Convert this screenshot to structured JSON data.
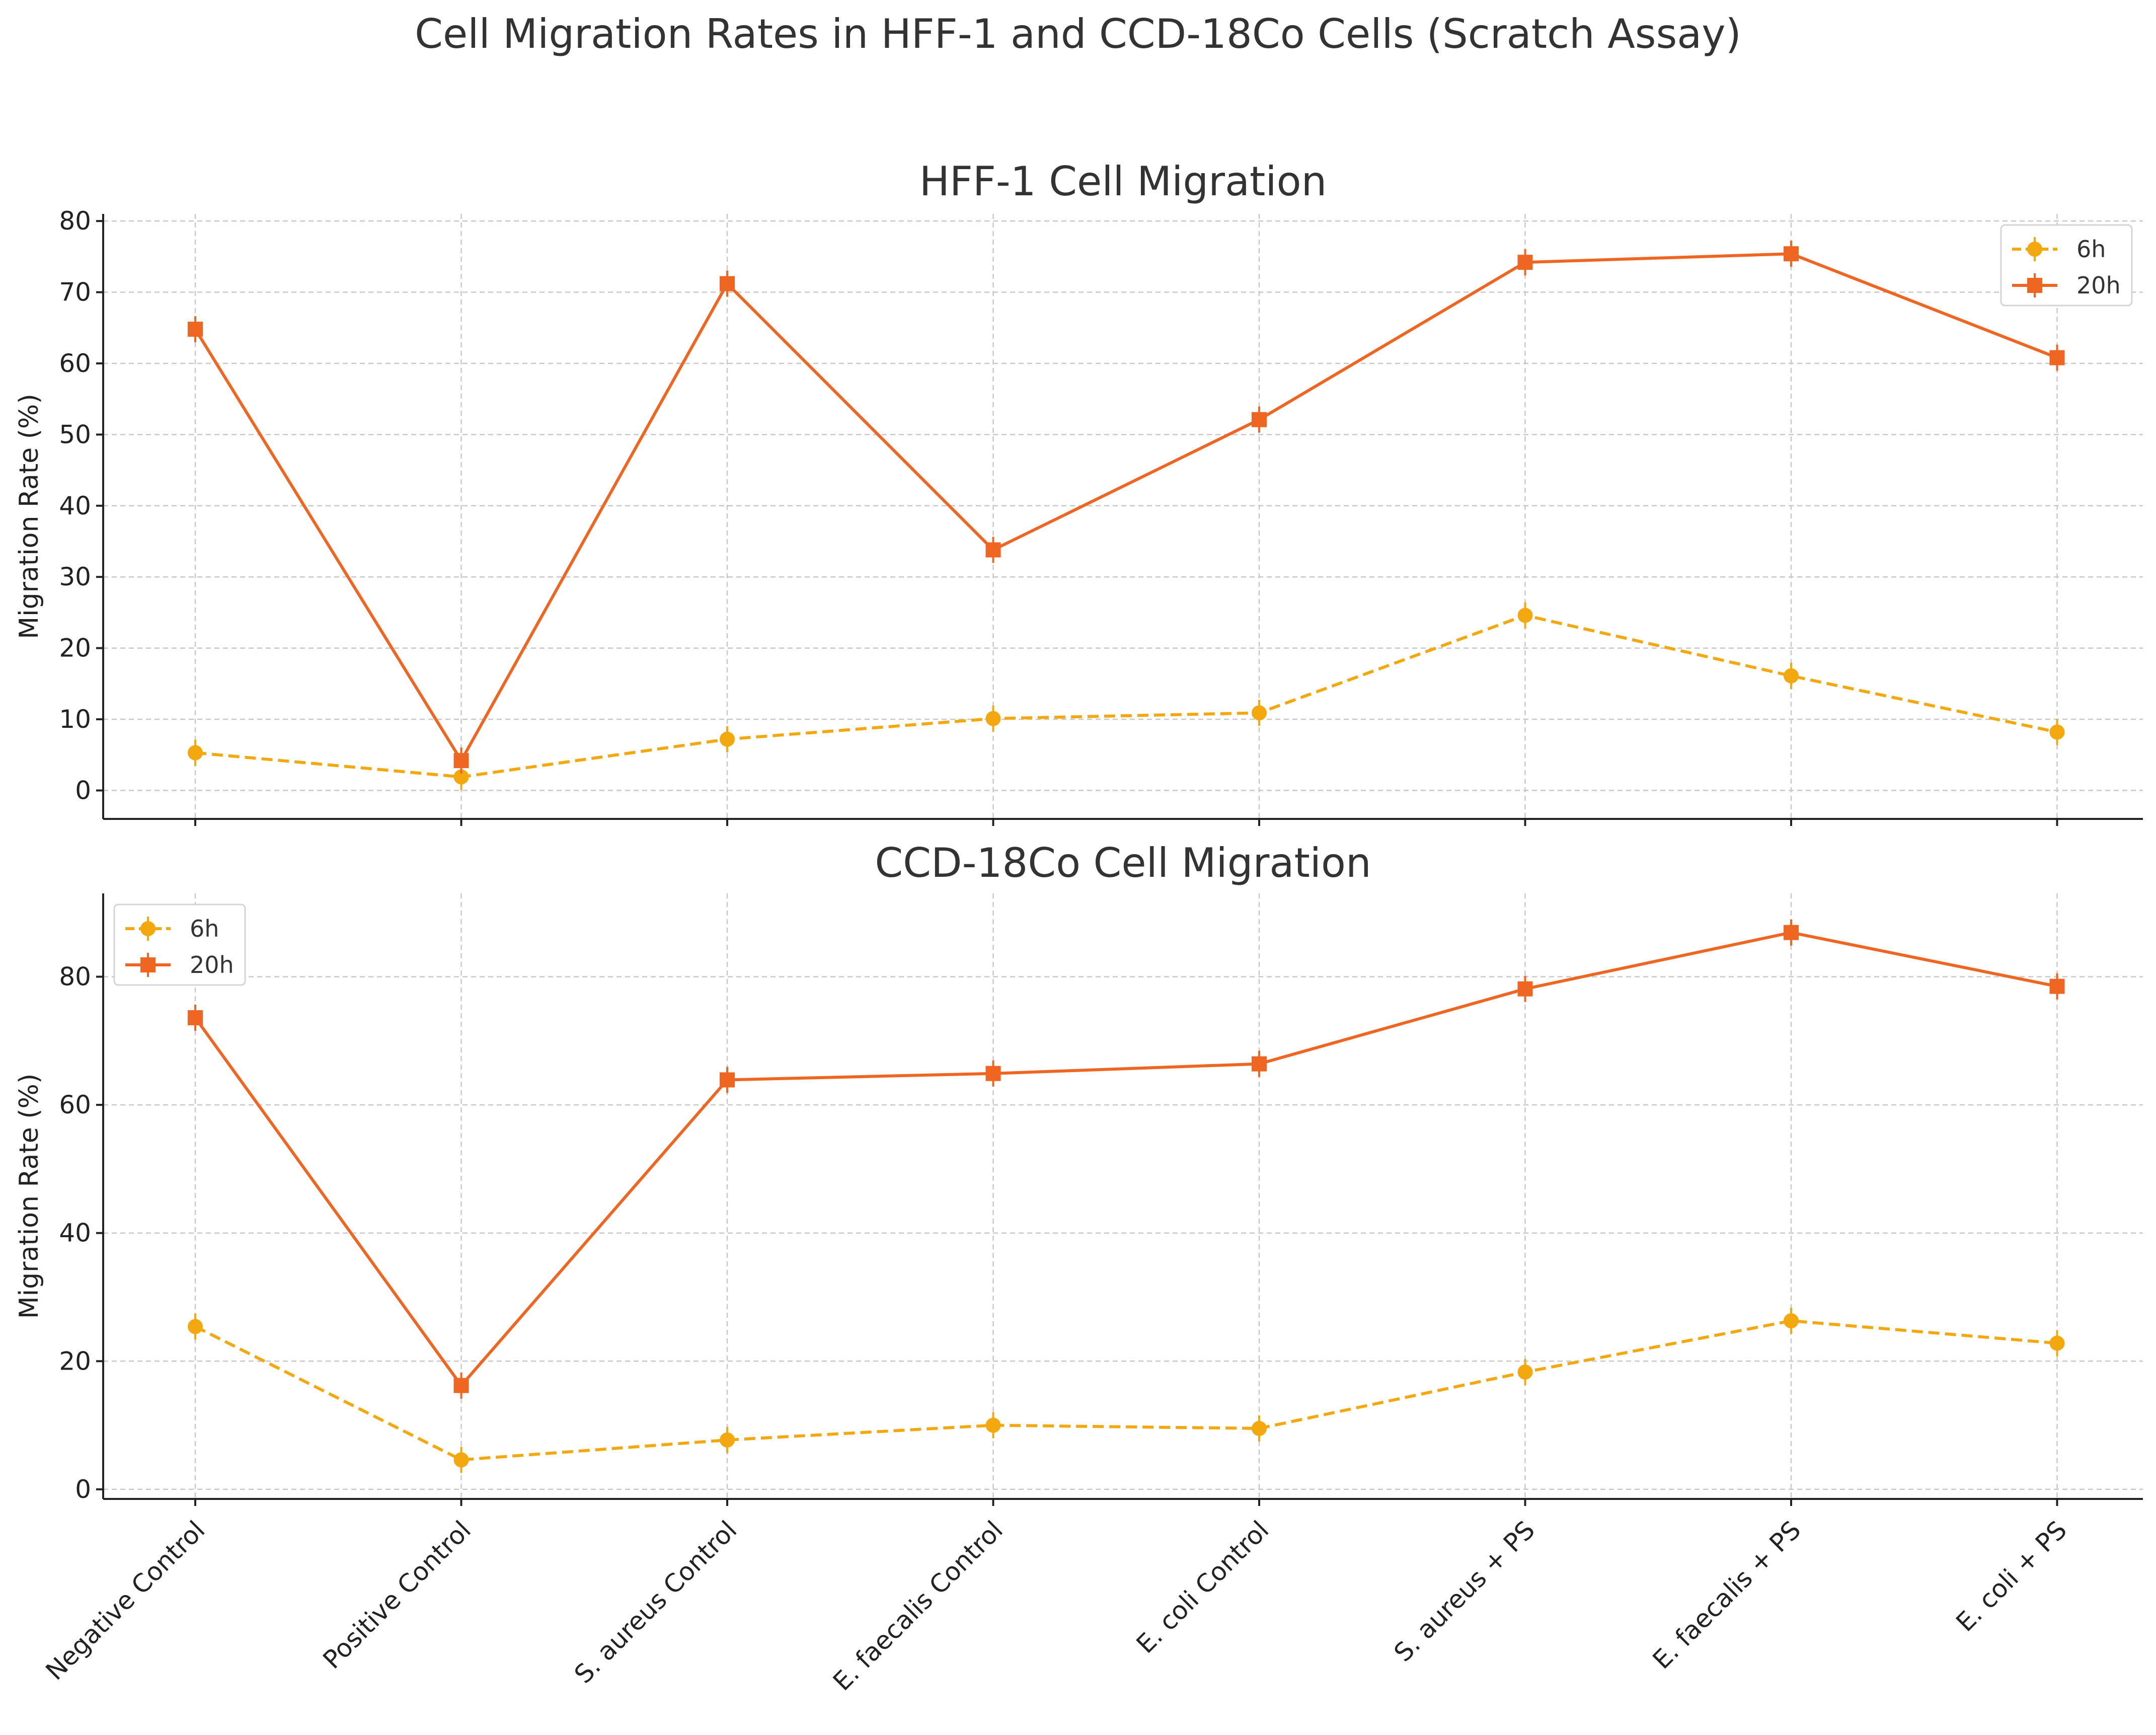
{
  "chart_data": {
    "type": "line",
    "suptitle": "Cell Migration Rates in HFF-1 and CCD-18Co Cells (Scratch Assay)",
    "categories": [
      "Negative Control",
      "Positive Control",
      "S. aureus Control",
      "E. faecalis Control",
      "E. coli Control",
      "S. aureus + PS",
      "E. faecalis + PS",
      "E. coli + PS"
    ],
    "colors": {
      "6h": "#f4a80f",
      "20h": "#ee6622"
    },
    "panels": [
      {
        "title": "HFF-1 Cell Migration",
        "ylabel": "Migration Rate (%)",
        "ylim": [
          -4,
          81
        ],
        "yticks": [
          0,
          10,
          20,
          30,
          40,
          50,
          60,
          70,
          80
        ],
        "legend_position": "top-right",
        "series": [
          {
            "name": "6h",
            "values": [
              5.3,
              1.9,
              7.2,
              10.1,
              10.9,
              24.6,
              16.1,
              8.2
            ]
          },
          {
            "name": "20h",
            "values": [
              64.8,
              4.2,
              71.2,
              33.8,
              52.1,
              74.2,
              75.4,
              60.8
            ]
          }
        ]
      },
      {
        "title": "CCD-18Co Cell Migration",
        "ylabel": "Migration Rate (%)",
        "ylim": [
          -1.5,
          93
        ],
        "yticks": [
          0,
          20,
          40,
          60,
          80
        ],
        "legend_position": "top-left",
        "series": [
          {
            "name": "6h",
            "values": [
              25.4,
              4.6,
              7.7,
              10.0,
              9.5,
              18.3,
              26.3,
              22.8
            ]
          },
          {
            "name": "20h",
            "values": [
              73.6,
              16.2,
              63.9,
              64.9,
              66.4,
              78.1,
              86.9,
              78.5
            ]
          }
        ]
      }
    ]
  }
}
